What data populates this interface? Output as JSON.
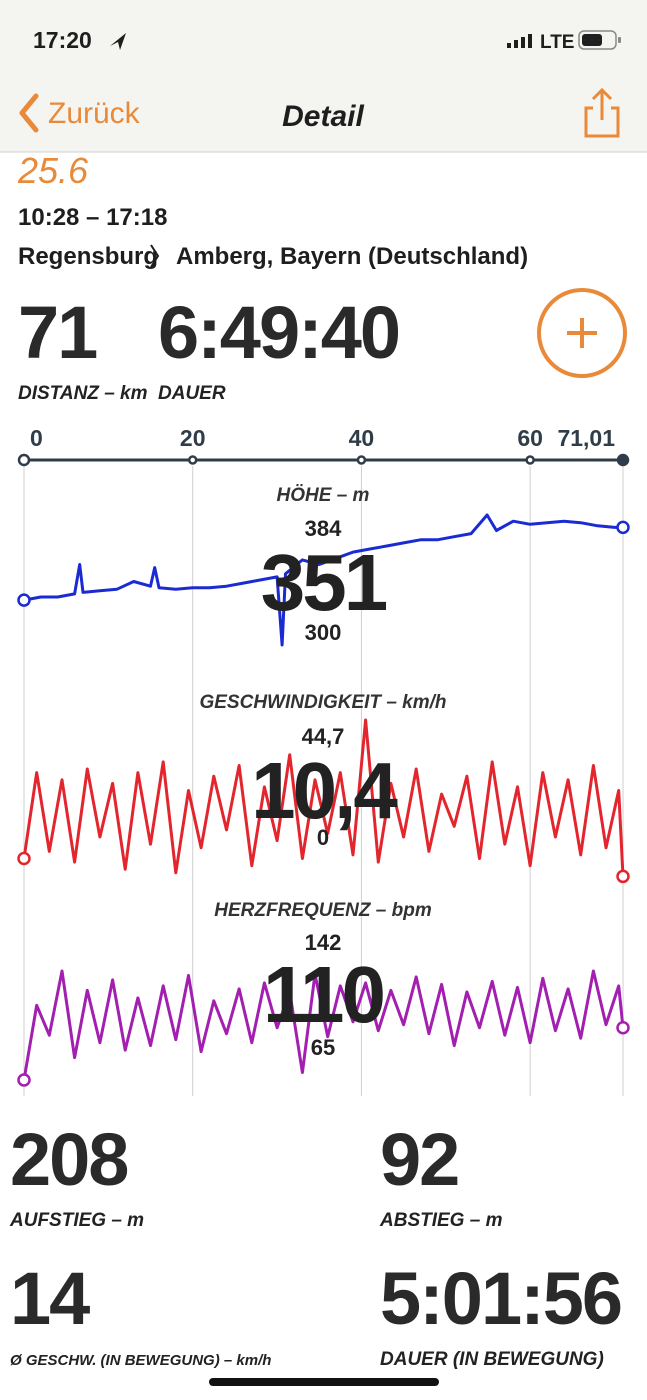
{
  "status_bar": {
    "time": "17:20",
    "network": "LTE"
  },
  "nav": {
    "back": "Zurück",
    "title": "Detail"
  },
  "ride": {
    "name": "25.6",
    "time_range": "10:28 – 17:18",
    "from": "Regensburg",
    "to": "Amberg, Bayern (Deutschland)"
  },
  "stats": [
    {
      "value": "71",
      "label": "DISTANZ – km"
    },
    {
      "value": "6:49:40",
      "label": "DAUER"
    }
  ],
  "distance_axis": {
    "xlim": [
      0,
      71.01
    ],
    "xticks": [
      0,
      20,
      40,
      60,
      {
        "value": 71.01,
        "label": "71,01"
      }
    ]
  },
  "chart_data": [
    {
      "type": "line",
      "title": "HÖHE – m",
      "color": "#1b2bd4",
      "max": 384,
      "min": 300,
      "current": 351,
      "x": [
        0,
        2,
        4,
        6,
        6.6,
        7,
        9,
        11,
        13,
        15,
        15.5,
        16,
        18,
        20,
        22,
        24,
        26,
        28,
        30,
        30.6,
        31,
        33,
        35,
        37,
        39,
        41,
        43,
        45,
        47,
        49,
        51,
        53,
        54.9,
        56,
        58,
        60,
        62,
        64,
        66,
        68,
        70,
        71.01
      ],
      "values": [
        329,
        331,
        331,
        333,
        352,
        334,
        335,
        336,
        341,
        338,
        350,
        337,
        336,
        337,
        337,
        338,
        340,
        342,
        344,
        300,
        346,
        355,
        352,
        356,
        360,
        362,
        364,
        366,
        368,
        368,
        370,
        372,
        384,
        374,
        380,
        378,
        379,
        380,
        379,
        377,
        376,
        376
      ]
    },
    {
      "type": "line",
      "title": "GESCHWINDIGKEIT – km/h",
      "color": "#e3262e",
      "max": {
        "value": 44.7,
        "label": "44,7"
      },
      "min": 0,
      "current": {
        "value": 10.4,
        "label": "10,4"
      },
      "x": [
        0,
        1.5,
        3,
        4.5,
        6,
        7.5,
        9,
        10.5,
        12,
        13.5,
        15,
        16.5,
        18,
        19.5,
        21,
        22.5,
        24,
        25.5,
        27,
        28.5,
        30,
        31.5,
        33,
        34.5,
        36,
        37.5,
        39,
        40.5,
        42,
        43.5,
        45,
        46.5,
        48,
        49.5,
        51,
        52.5,
        54,
        55.5,
        57,
        58.5,
        60,
        61.5,
        63,
        64.5,
        66,
        67.5,
        69,
        70.5,
        71.01
      ],
      "values": [
        6,
        30,
        8,
        28,
        5,
        31,
        12,
        27,
        3,
        30,
        10,
        33,
        2,
        25,
        9,
        29,
        14,
        32,
        4,
        26,
        11,
        35,
        6,
        28,
        13,
        30,
        7,
        44.7,
        5,
        27,
        12,
        31,
        8,
        24,
        15,
        29,
        6,
        33,
        10,
        26,
        4,
        30,
        12,
        28,
        7,
        32,
        9,
        25,
        1
      ]
    },
    {
      "type": "line",
      "title": "HERZFREQUENZ – bpm",
      "color": "#a21fb0",
      "max": 142,
      "min": 65,
      "current": 110,
      "x": [
        0,
        1.5,
        3,
        4.5,
        6,
        7.5,
        9,
        10.5,
        12,
        13.5,
        15,
        16.5,
        18,
        19.5,
        21,
        22.5,
        24,
        25.5,
        27,
        28.5,
        30,
        31.5,
        33,
        34.5,
        36,
        37.5,
        39,
        40.5,
        42,
        43.5,
        45,
        46.5,
        48,
        49.5,
        51,
        52.5,
        54,
        55.5,
        57,
        58.5,
        60,
        61.5,
        63,
        64.5,
        66,
        67.5,
        69,
        70.5,
        71.01
      ],
      "values": [
        65,
        115,
        95,
        138,
        80,
        125,
        90,
        132,
        85,
        120,
        88,
        128,
        92,
        135,
        84,
        118,
        96,
        126,
        90,
        130,
        100,
        124,
        70,
        136,
        94,
        128,
        104,
        130,
        98,
        125,
        102,
        134,
        96,
        129,
        88,
        124,
        100,
        131,
        95,
        127,
        90,
        133,
        98,
        126,
        93,
        138,
        102,
        128,
        100
      ]
    }
  ],
  "summary": [
    {
      "value": "208",
      "label": "AUFSTIEG – m"
    },
    {
      "value": "92",
      "label": "ABSTIEG – m"
    },
    {
      "value": "14",
      "label": "Ø GESCHW. (IN BEWEGUNG) – km/h"
    },
    {
      "value": "5:01:56",
      "label": "DAUER (IN BEWEGUNG)"
    }
  ]
}
